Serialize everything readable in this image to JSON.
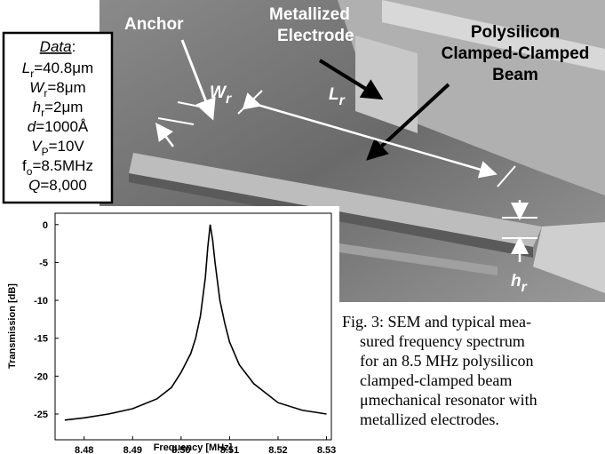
{
  "sem_labels": {
    "anchor": "Anchor",
    "electrode": [
      "Metallized",
      "Electrode"
    ],
    "beam": [
      "Polysilicon",
      "Clamped-Clamped",
      "Beam"
    ],
    "width": {
      "var": "W",
      "sub": "r"
    },
    "length": {
      "var": "L",
      "sub": "r"
    },
    "height": {
      "var": "h",
      "sub": "r"
    }
  },
  "data_box": {
    "title": "Data",
    "colon": ":",
    "lines": [
      {
        "var": "L",
        "sub": "r",
        "rest": "=40.8μm",
        "italic": true
      },
      {
        "var": "W",
        "sub": "r",
        "rest": "=8μm",
        "italic": true
      },
      {
        "var": "h",
        "sub": "r",
        "rest": "=2μm",
        "italic": true
      },
      {
        "var": "d",
        "rest": "=1000Å",
        "italic": true
      },
      {
        "var": "V",
        "sub": "P",
        "rest": "=10V",
        "italic": true
      },
      {
        "var": "f",
        "sub": "o",
        "rest": "=8.5MHz",
        "italic": false
      },
      {
        "var": "Q",
        "rest": "=8,000",
        "italic": true
      }
    ]
  },
  "chart_data": {
    "type": "line",
    "xlabel": "Frequency [MHz]",
    "ylabel": "Transmission [dB]",
    "color": "#000000",
    "x": [
      8.476,
      8.48,
      8.485,
      8.49,
      8.495,
      8.498,
      8.5,
      8.502,
      8.503,
      8.504,
      8.505,
      8.5055,
      8.506,
      8.5065,
      8.507,
      8.508,
      8.509,
      8.51,
      8.512,
      8.515,
      8.52,
      8.525,
      8.53
    ],
    "values": [
      -25.8,
      -25.5,
      -25,
      -24.3,
      -23,
      -21.5,
      -19.5,
      -17,
      -15,
      -12,
      -7,
      -3,
      0,
      -2,
      -5,
      -10,
      -13,
      -15.5,
      -18.5,
      -21,
      -23.5,
      -24.5,
      -25
    ],
    "xlim": [
      8.474,
      8.531
    ],
    "ylim": [
      -28.4,
      1.5
    ],
    "xticks": [
      8.48,
      8.49,
      {
        "value": 8.5,
        "label": "8.50"
      },
      8.51,
      8.52,
      8.53
    ],
    "yticks": [
      0,
      -5,
      -10,
      -15,
      -20,
      -25
    ],
    "grid": false
  },
  "caption": [
    "Fig. 3:   SEM and typical mea-",
    "sured frequency spectrum",
    "for an 8.5 MHz polysilicon",
    "clamped-clamped beam",
    "μmechanical resonator with",
    "metallized electrodes."
  ]
}
